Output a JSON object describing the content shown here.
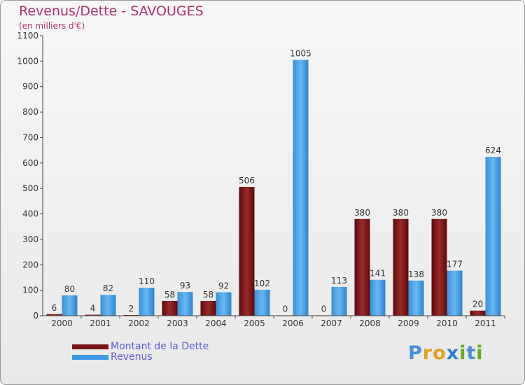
{
  "title": "Revenus/Dette - SAVOUGES",
  "subtitle": "(en milliers d'€)",
  "legend": {
    "items": [
      {
        "label": "Montant de la Dette",
        "color": "#7a1414"
      },
      {
        "label": "Revenus",
        "color": "#3c9ae6"
      }
    ]
  },
  "logo": {
    "letters": [
      "P",
      "r",
      "o",
      "x",
      "i",
      "t",
      "i"
    ],
    "colors": [
      "#4a8fd6",
      "#e0a020",
      "#e0a020",
      "#2d7fd0",
      "#66aa22",
      "#4a8fd6",
      "#66aa22"
    ]
  },
  "chart_data": {
    "type": "bar",
    "title": "Revenus/Dette - SAVOUGES",
    "subtitle": "(en milliers d'€)",
    "xlabel": "",
    "ylabel": "",
    "ylim": [
      0,
      1100
    ],
    "yticks": [
      0,
      100,
      200,
      300,
      400,
      500,
      600,
      700,
      800,
      900,
      1000,
      1100
    ],
    "grid": false,
    "legend_position": "bottom-left",
    "categories": [
      "2000",
      "2001",
      "2002",
      "2003",
      "2004",
      "2005",
      "2006",
      "2007",
      "2008",
      "2009",
      "2010",
      "2011"
    ],
    "series": [
      {
        "name": "Montant de la Dette",
        "color": "#7a1414",
        "values": [
          6,
          4,
          2,
          58,
          58,
          506,
          0,
          0,
          380,
          380,
          380,
          20
        ]
      },
      {
        "name": "Revenus",
        "color": "#3c9ae6",
        "values": [
          80,
          82,
          110,
          93,
          92,
          102,
          1005,
          113,
          141,
          138,
          177,
          624
        ]
      }
    ]
  }
}
